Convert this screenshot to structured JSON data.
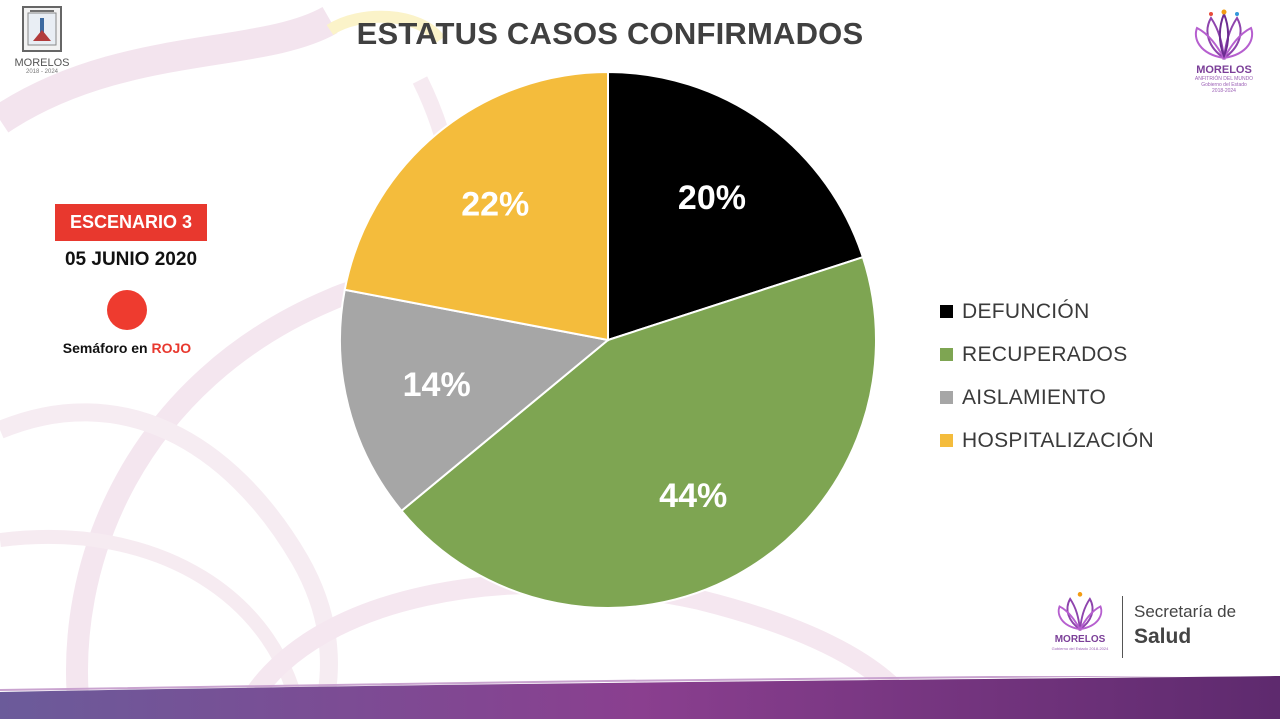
{
  "title": "ESTATUS CASOS CONFIRMADOS",
  "logo_left": {
    "name": "MORELOS",
    "years": "2018 - 2024",
    "icon": "coat-of-arms-icon"
  },
  "logo_right": {
    "brand": "MORELOS",
    "tagline": "ANFITRIÓN DEL MUNDO",
    "sub": "Gobierno del Estado",
    "years": "2018-2024",
    "icon": "lotus-flower-icon"
  },
  "scenario": {
    "label": "ESCENARIO 3",
    "date": "05 JUNIO 2020",
    "semaforo_prefix": "Semáforo en ",
    "semaforo_state": "ROJO",
    "semaforo_color": "#ee3b2f"
  },
  "chart_data": {
    "type": "pie",
    "title": "ESTATUS CASOS CONFIRMADOS",
    "categories": [
      "DEFUNCIÓN",
      "RECUPERADOS",
      "AISLAMIENTO",
      "HOSPITALIZACIÓN"
    ],
    "values": [
      20,
      44,
      14,
      22
    ],
    "labels": [
      "20%",
      "44%",
      "14%",
      "22%"
    ],
    "colors": [
      "#000000",
      "#7ea552",
      "#a6a6a6",
      "#f4bc3c"
    ],
    "start_angle_deg": 0,
    "direction": "clockwise",
    "legend_position": "right"
  },
  "footer": {
    "secretaria": "Secretaría de",
    "salud": "Salud",
    "brand": "MORELOS",
    "sub": "Gobierno del Estado 2018-2024"
  },
  "colors": {
    "accent_red": "#e8382e",
    "brand_purple": "#7b3f98"
  }
}
